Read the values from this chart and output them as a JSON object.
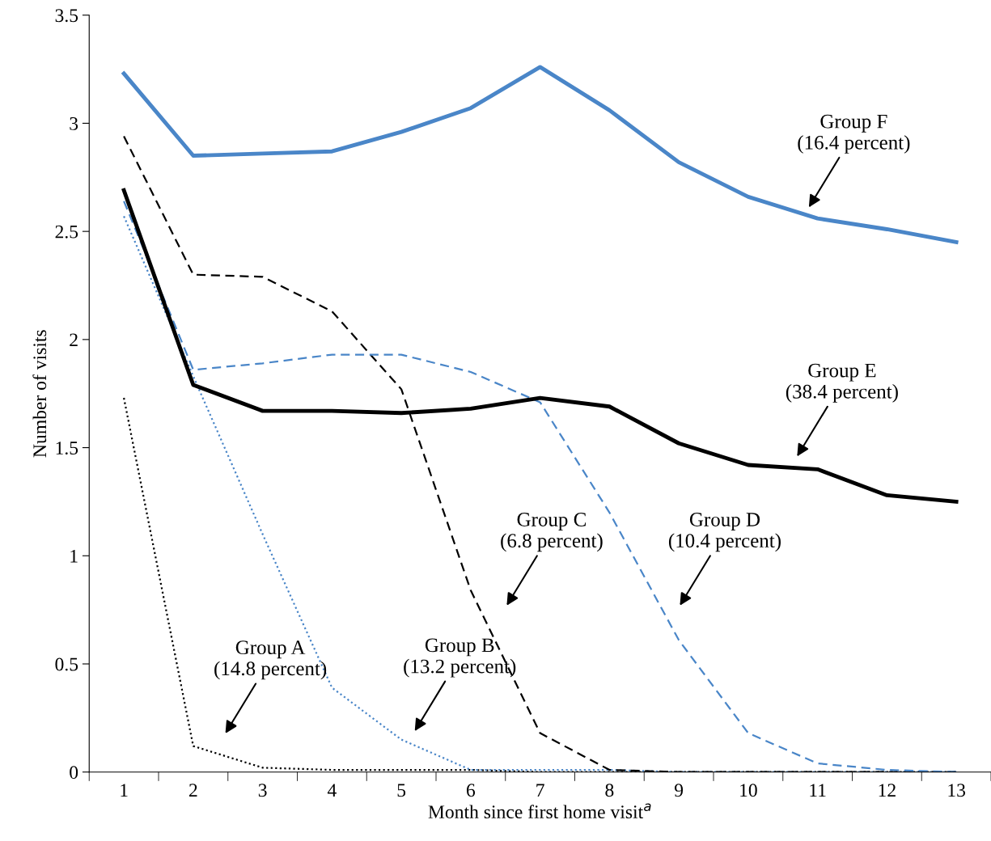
{
  "chart_data": {
    "type": "line",
    "xlabel": "Month since first home visit$^{a}$",
    "ylabel": "Number of visits",
    "categories": [
      "1",
      "2",
      "3",
      "4",
      "5",
      "6",
      "7",
      "8",
      "9",
      "10",
      "11",
      "12",
      "13"
    ],
    "ylim": [
      0,
      3.5
    ],
    "yticks": [
      0,
      0.5,
      1,
      1.5,
      2,
      2.5,
      3,
      3.5
    ],
    "grid": false,
    "legend": false,
    "marker": "none",
    "series": [
      {
        "color": "#000000",
        "line_style": "dotted",
        "values": [
          1.73,
          0.12,
          0.02,
          0.01,
          0.01,
          0.01,
          0,
          0,
          0,
          0,
          0,
          0,
          0
        ]
      },
      {
        "color": "#4a86c8",
        "line_style": "dotted",
        "values": [
          2.57,
          1.83,
          1.1,
          0.39,
          0.15,
          0.01,
          0.01,
          0.01,
          0,
          0,
          0,
          0,
          0
        ]
      },
      {
        "color": "#000000",
        "line_style": "dashed",
        "values": [
          2.94,
          2.3,
          2.29,
          2.13,
          1.77,
          0.84,
          0.18,
          0.01,
          0,
          0,
          0,
          0,
          0
        ]
      },
      {
        "color": "#4a86c8",
        "line_style": "dashed",
        "values": [
          2.64,
          1.86,
          1.89,
          1.93,
          1.93,
          1.85,
          1.71,
          1.2,
          0.61,
          0.18,
          0.04,
          0.01,
          0
        ]
      },
      {
        "color": "#000000",
        "line_style": "solid",
        "values": [
          2.69,
          1.79,
          1.67,
          1.67,
          1.66,
          1.68,
          1.73,
          1.69,
          1.52,
          1.42,
          1.4,
          1.28,
          1.25
        ]
      },
      {
        "color": "#4a86c8",
        "line_style": "solid",
        "values": [
          3.23,
          2.85,
          2.86,
          2.87,
          2.96,
          3.07,
          3.26,
          3.06,
          2.82,
          2.66,
          2.56,
          2.51,
          2.45
        ]
      }
    ],
    "annotations": [
      "Group A\n(14.8 percent)",
      "Group B\n(13.2 percent)",
      "Group C\n(6.8 percent)",
      "Group D\n(10.4 percent)",
      "Group E\n(38.4 percent)",
      "Group F\n(16.4 percent)"
    ]
  }
}
